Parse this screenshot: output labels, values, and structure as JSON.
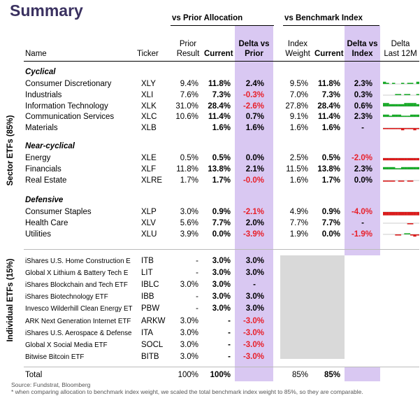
{
  "title": "Summary",
  "groups": {
    "prior": "vs Prior Allocation",
    "bench": "vs Benchmark Index"
  },
  "headers": {
    "name": "Name",
    "ticker": "Ticker",
    "prior_result": [
      "Prior",
      "Result"
    ],
    "current": "Current",
    "delta_prior": [
      "Delta vs",
      "Prior"
    ],
    "index_weight": [
      "Index",
      "Weight"
    ],
    "current2": "Current",
    "delta_index": [
      "Delta vs",
      "Index"
    ],
    "delta_12m": [
      "Delta",
      "Last 12M"
    ]
  },
  "side_labels": {
    "sector": "Sector ETFs (85%)",
    "individual": "Individual ETFs (15%)"
  },
  "colors": {
    "accent_band": "#d9c8f2",
    "negative": "#e8202a",
    "spark_pos": "#1aaa2a",
    "spark_neg": "#d91c1c",
    "title": "#3a3160"
  },
  "sections": [
    {
      "label": "Cyclical",
      "rows": [
        {
          "name": "Consumer Discretionary",
          "ticker": "XLY",
          "prior": "9.4%",
          "current": "11.8%",
          "delta_prior": "2.4%",
          "index": "9.5%",
          "current2": "11.8%",
          "delta_index": "2.3%",
          "spark": [
            2,
            1,
            0,
            1,
            0,
            0,
            1,
            0,
            1,
            1,
            0,
            2
          ]
        },
        {
          "name": "Industrials",
          "ticker": "XLI",
          "prior": "7.6%",
          "current": "7.3%",
          "delta_prior": "-0.3%",
          "index": "7.0%",
          "current2": "7.3%",
          "delta_index": "0.3%",
          "spark": [
            0,
            0,
            0,
            0,
            1,
            1,
            0,
            1,
            1,
            0,
            0,
            1
          ]
        },
        {
          "name": "Information Technology",
          "ticker": "XLK",
          "prior": "31.0%",
          "current": "28.4%",
          "delta_prior": "-2.6%",
          "index": "27.8%",
          "current2": "28.4%",
          "delta_index": "0.6%",
          "spark": [
            3,
            3,
            2,
            2,
            2,
            2,
            2,
            3,
            3,
            3,
            3,
            2
          ]
        },
        {
          "name": "Communication Services",
          "ticker": "XLC",
          "prior": "10.6%",
          "current": "11.4%",
          "delta_prior": "0.7%",
          "index": "9.1%",
          "current2": "11.4%",
          "delta_index": "2.3%",
          "spark": [
            2,
            2,
            1,
            2,
            2,
            2,
            1,
            1,
            1,
            2,
            2,
            2
          ]
        },
        {
          "name": "Materials",
          "ticker": "XLB",
          "prior": "",
          "current": "1.6%",
          "delta_prior": "1.6%",
          "index": "1.6%",
          "current2": "1.6%",
          "delta_index": "-",
          "spark": [
            -1,
            -1,
            -1,
            -1,
            -1,
            -1,
            -2,
            -1,
            -1,
            -1,
            -2,
            -1
          ]
        }
      ]
    },
    {
      "label": "Near-cyclical",
      "rows": [
        {
          "name": "Energy",
          "ticker": "XLE",
          "prior": "0.5%",
          "current": "0.5%",
          "delta_prior": "0.0%",
          "index": "2.5%",
          "current2": "0.5%",
          "delta_index": "-2.0%",
          "spark": [
            -2,
            -2,
            -2,
            -2,
            -2,
            -2,
            -2,
            -2,
            -2,
            -2,
            -2,
            -2
          ]
        },
        {
          "name": "Financials",
          "ticker": "XLF",
          "prior": "11.8%",
          "current": "13.8%",
          "delta_prior": "2.1%",
          "index": "11.5%",
          "current2": "13.8%",
          "delta_index": "2.3%",
          "spark": [
            2,
            2,
            2,
            2,
            1,
            1,
            2,
            2,
            2,
            2,
            2,
            2
          ]
        },
        {
          "name": "Real Estate",
          "ticker": "XLRE",
          "prior": "1.7%",
          "current": "1.7%",
          "delta_prior": "-0.0%",
          "index": "1.6%",
          "current2": "1.7%",
          "delta_index": "0.0%",
          "spark": [
            -1,
            -1,
            -1,
            -1,
            0,
            -1,
            -1,
            0,
            -1,
            -1,
            0,
            0
          ]
        }
      ]
    },
    {
      "label": "Defensive",
      "rows": [
        {
          "name": "Consumer Staples",
          "ticker": "XLP",
          "prior": "3.0%",
          "current": "0.9%",
          "delta_prior": "-2.1%",
          "index": "4.9%",
          "current2": "0.9%",
          "delta_index": "-4.0%",
          "spark": [
            -3,
            -3,
            -3,
            -3,
            -3,
            -3,
            -3,
            -3,
            -3,
            -3,
            -3,
            -3
          ]
        },
        {
          "name": "Health Care",
          "ticker": "XLV",
          "prior": "5.6%",
          "current": "7.7%",
          "delta_prior": "2.0%",
          "index": "7.7%",
          "current2": "7.7%",
          "delta_index": "-",
          "spark": [
            0,
            0,
            0,
            0,
            0,
            0,
            0,
            0,
            -1,
            -1,
            0,
            0
          ]
        },
        {
          "name": "Utilities",
          "ticker": "XLU",
          "prior": "3.9%",
          "current": "0.0%",
          "delta_prior": "-3.9%",
          "index": "1.9%",
          "current2": "0.0%",
          "delta_index": "-1.9%",
          "spark": [
            0,
            0,
            0,
            0,
            -1,
            -1,
            0,
            1,
            1,
            -1,
            -2,
            -1
          ]
        }
      ]
    }
  ],
  "individual": [
    {
      "name": "iShares U.S. Home Construction E",
      "ticker": "ITB",
      "prior": "-",
      "current": "3.0%",
      "delta_prior": "3.0%"
    },
    {
      "name": "Global X Lithium & Battery Tech E",
      "ticker": "LIT",
      "prior": "-",
      "current": "3.0%",
      "delta_prior": "3.0%"
    },
    {
      "name": "iShares Blockchain and Tech ETF",
      "ticker": "IBLC",
      "prior": "3.0%",
      "current": "3.0%",
      "delta_prior": "-"
    },
    {
      "name": "iShares Biotechnology ETF",
      "ticker": "IBB",
      "prior": "-",
      "current": "3.0%",
      "delta_prior": "3.0%"
    },
    {
      "name": "Invesco Wilderhill Clean Energy ET",
      "ticker": "PBW",
      "prior": "-",
      "current": "3.0%",
      "delta_prior": "3.0%"
    },
    {
      "name": "ARK Next Generation Internet ETF",
      "ticker": "ARKW",
      "prior": "3.0%",
      "current": "-",
      "delta_prior": "-3.0%"
    },
    {
      "name": "iShares U.S. Aerospace & Defense",
      "ticker": "ITA",
      "prior": "3.0%",
      "current": "-",
      "delta_prior": "-3.0%"
    },
    {
      "name": "Global X Social Media ETF",
      "ticker": "SOCL",
      "prior": "3.0%",
      "current": "-",
      "delta_prior": "-3.0%"
    },
    {
      "name": "Bitwise Bitcoin ETF",
      "ticker": "BITB",
      "prior": "3.0%",
      "current": "-",
      "delta_prior": "-3.0%"
    }
  ],
  "total": {
    "label": "Total",
    "prior": "100%",
    "current": "100%",
    "index": "85%",
    "current2": "85%"
  },
  "footnotes": {
    "source": "Source: Fundstrat, Bloomberg",
    "note": "* when comparing allocation to benchmark index weight, we scaled the total benchmark index weight to 85%, so they are comparable."
  }
}
